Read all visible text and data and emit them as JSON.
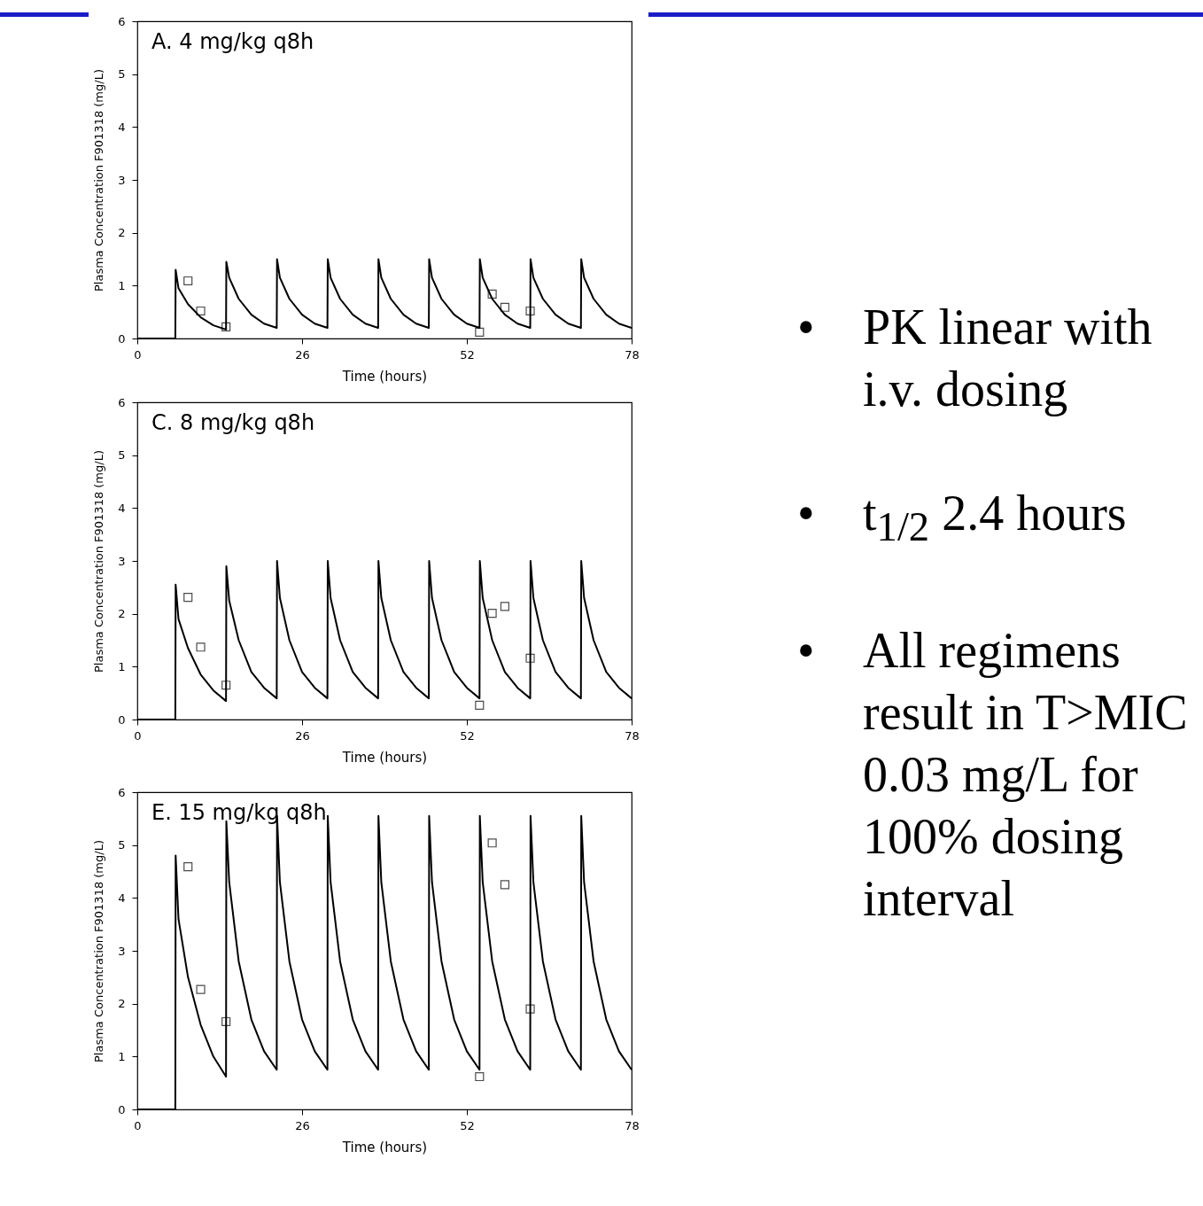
{
  "chart_data": [
    {
      "type": "line",
      "title": "A.   4 mg/kg q8h",
      "xlabel": "Time (hours)",
      "ylabel": "Plasma Concentration F901318 (mg/L)",
      "xlim": [
        0,
        78
      ],
      "ylim": [
        0,
        6
      ],
      "xticks": [
        0,
        26,
        52,
        78
      ],
      "yticks": [
        0,
        1,
        2,
        3,
        4,
        5,
        6
      ],
      "series": [
        {
          "type": "line",
          "color": "#000000",
          "marker": "none",
          "x": [
            0,
            6,
            6.05,
            6.5,
            8,
            10,
            12,
            14,
            14.05,
            14.5,
            16,
            18,
            20,
            22,
            22.05,
            22.5,
            24,
            26,
            28,
            30,
            30.05,
            30.5,
            32,
            34,
            36,
            38,
            38.05,
            38.5,
            40,
            42,
            44,
            46,
            46.05,
            46.5,
            48,
            50,
            52,
            54,
            54.05,
            54.5,
            56,
            58,
            60,
            62,
            62.05,
            62.5,
            64,
            66,
            68,
            70,
            70.05,
            70.5,
            72,
            74,
            76,
            78
          ],
          "values": [
            0,
            0,
            1.3,
            0.95,
            0.65,
            0.4,
            0.25,
            0.17,
            1.45,
            1.15,
            0.75,
            0.45,
            0.28,
            0.2,
            1.5,
            1.15,
            0.75,
            0.45,
            0.28,
            0.2,
            1.5,
            1.15,
            0.75,
            0.45,
            0.28,
            0.2,
            1.5,
            1.15,
            0.75,
            0.45,
            0.28,
            0.2,
            1.5,
            1.15,
            0.75,
            0.45,
            0.28,
            0.2,
            1.5,
            1.15,
            0.75,
            0.45,
            0.28,
            0.2,
            1.5,
            1.15,
            0.75,
            0.45,
            0.28,
            0.2,
            1.5,
            1.15,
            0.75,
            0.45,
            0.28,
            0.2
          ]
        },
        {
          "type": "scatter",
          "color": "#000000",
          "marker": "square",
          "x": [
            8,
            10,
            14,
            54,
            56,
            58,
            62
          ],
          "values": [
            1.09,
            0.52,
            0.22,
            0.12,
            0.84,
            0.59,
            0.52
          ]
        }
      ]
    },
    {
      "type": "line",
      "title": "C.   8 mg/kg q8h",
      "xlabel": "Time (hours)",
      "ylabel": "Plasma Concentration F901318 (mg/L)",
      "xlim": [
        0,
        78
      ],
      "ylim": [
        0,
        6
      ],
      "xticks": [
        0,
        26,
        52,
        78
      ],
      "yticks": [
        0,
        1,
        2,
        3,
        4,
        5,
        6
      ],
      "series": [
        {
          "type": "line",
          "color": "#000000",
          "marker": "none",
          "x": [
            0,
            6,
            6.05,
            6.5,
            8,
            10,
            12,
            14,
            14.05,
            14.5,
            16,
            18,
            20,
            22,
            22.05,
            22.5,
            24,
            26,
            28,
            30,
            30.05,
            30.5,
            32,
            34,
            36,
            38,
            38.05,
            38.5,
            40,
            42,
            44,
            46,
            46.05,
            46.5,
            48,
            50,
            52,
            54,
            54.05,
            54.5,
            56,
            58,
            60,
            62,
            62.05,
            62.5,
            64,
            66,
            68,
            70,
            70.05,
            70.5,
            72,
            74,
            76,
            78
          ],
          "values": [
            0,
            0,
            2.55,
            1.9,
            1.35,
            0.85,
            0.55,
            0.35,
            2.9,
            2.25,
            1.5,
            0.9,
            0.6,
            0.4,
            3.0,
            2.3,
            1.5,
            0.9,
            0.6,
            0.4,
            3.0,
            2.3,
            1.5,
            0.9,
            0.6,
            0.4,
            3.0,
            2.3,
            1.5,
            0.9,
            0.6,
            0.4,
            3.0,
            2.3,
            1.5,
            0.9,
            0.6,
            0.4,
            3.0,
            2.3,
            1.5,
            0.9,
            0.6,
            0.4,
            3.0,
            2.3,
            1.5,
            0.9,
            0.6,
            0.4,
            3.0,
            2.3,
            1.5,
            0.9,
            0.6,
            0.4
          ]
        },
        {
          "type": "scatter",
          "color": "#000000",
          "marker": "square",
          "x": [
            8,
            10,
            14,
            54,
            56,
            58,
            62
          ],
          "values": [
            2.31,
            1.37,
            0.65,
            0.27,
            2.01,
            2.14,
            1.16
          ]
        }
      ]
    },
    {
      "type": "line",
      "title": "E.   15 mg/kg q8h",
      "xlabel": "Time (hours)",
      "ylabel": "Plasma Concentration F901318 (mg/L)",
      "xlim": [
        0,
        78
      ],
      "ylim": [
        0,
        6
      ],
      "xticks": [
        0,
        26,
        52,
        78
      ],
      "yticks": [
        0,
        1,
        2,
        3,
        4,
        5,
        6
      ],
      "series": [
        {
          "type": "line",
          "color": "#000000",
          "marker": "none",
          "x": [
            0,
            6,
            6.05,
            6.5,
            8,
            10,
            12,
            14,
            14.05,
            14.5,
            16,
            18,
            20,
            22,
            22.05,
            22.5,
            24,
            26,
            28,
            30,
            30.05,
            30.5,
            32,
            34,
            36,
            38,
            38.05,
            38.5,
            40,
            42,
            44,
            46,
            46.05,
            46.5,
            48,
            50,
            52,
            54,
            54.05,
            54.5,
            56,
            58,
            60,
            62,
            62.05,
            62.5,
            64,
            66,
            68,
            70,
            70.05,
            70.5,
            72,
            74,
            76,
            78
          ],
          "values": [
            0,
            0,
            4.8,
            3.6,
            2.5,
            1.6,
            1.0,
            0.62,
            5.45,
            4.3,
            2.8,
            1.7,
            1.1,
            0.75,
            5.55,
            4.3,
            2.8,
            1.7,
            1.1,
            0.75,
            5.55,
            4.3,
            2.8,
            1.7,
            1.1,
            0.75,
            5.55,
            4.3,
            2.8,
            1.7,
            1.1,
            0.75,
            5.55,
            4.3,
            2.8,
            1.7,
            1.1,
            0.75,
            5.55,
            4.3,
            2.8,
            1.7,
            1.1,
            0.75,
            5.55,
            4.3,
            2.8,
            1.7,
            1.1,
            0.75,
            5.55,
            4.3,
            2.8,
            1.7,
            1.1,
            0.75
          ]
        },
        {
          "type": "scatter",
          "color": "#000000",
          "marker": "square",
          "x": [
            8,
            10,
            14,
            54,
            56,
            58,
            62
          ],
          "values": [
            4.59,
            2.27,
            1.66,
            0.62,
            5.04,
            4.25,
            1.9
          ]
        }
      ]
    },
    {
      "type": "other",
      "annotations": [
        "• PK linear with i.v. dosing",
        "• t$_{1/2}$ 2.4 hours",
        "• All regimens result in T>MIC 0.03 mg/L for 100% dosing interval"
      ]
    }
  ]
}
